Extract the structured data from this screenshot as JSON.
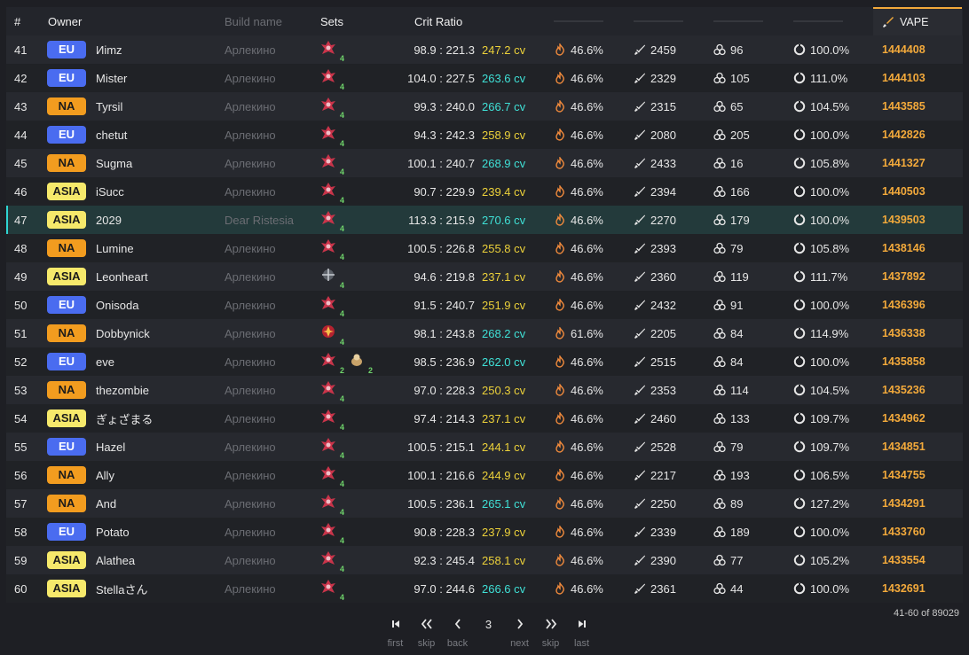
{
  "header": {
    "num": "#",
    "owner": "Owner",
    "build": "Build name",
    "sets": "Sets",
    "crit": "Crit Ratio",
    "sort_label": "VAPE"
  },
  "rows": [
    {
      "rank": "41",
      "region": "EU",
      "owner": "Иimz",
      "build": "Арлекино",
      "sets": [
        {
          "icon": "crimson-witch-set-icon",
          "count": "4"
        }
      ],
      "ratio": "98.9 : 221.3",
      "cv": "247.2 cv",
      "cv_tone": "y",
      "pyro": "46.6%",
      "atk": "2459",
      "em": "96",
      "er": "100.0%",
      "vape": "1444408"
    },
    {
      "rank": "42",
      "region": "EU",
      "owner": "Mister",
      "build": "Арлекино",
      "sets": [
        {
          "icon": "crimson-witch-set-icon",
          "count": "4"
        }
      ],
      "ratio": "104.0 : 227.5",
      "cv": "263.6 cv",
      "cv_tone": "c",
      "pyro": "46.6%",
      "atk": "2329",
      "em": "105",
      "er": "111.0%",
      "vape": "1444103"
    },
    {
      "rank": "43",
      "region": "NA",
      "owner": "Tyrsil",
      "build": "Арлекино",
      "sets": [
        {
          "icon": "crimson-witch-set-icon",
          "count": "4"
        }
      ],
      "ratio": "99.3 : 240.0",
      "cv": "266.7 cv",
      "cv_tone": "c",
      "pyro": "46.6%",
      "atk": "2315",
      "em": "65",
      "er": "104.5%",
      "vape": "1443585"
    },
    {
      "rank": "44",
      "region": "EU",
      "owner": "chetut",
      "build": "Арлекино",
      "sets": [
        {
          "icon": "crimson-witch-set-icon",
          "count": "4"
        }
      ],
      "ratio": "94.3 : 242.3",
      "cv": "258.9 cv",
      "cv_tone": "y",
      "pyro": "46.6%",
      "atk": "2080",
      "em": "205",
      "er": "100.0%",
      "vape": "1442826"
    },
    {
      "rank": "45",
      "region": "NA",
      "owner": "Sugma",
      "build": "Арлекино",
      "sets": [
        {
          "icon": "crimson-witch-set-icon",
          "count": "4"
        }
      ],
      "ratio": "100.1 : 240.7",
      "cv": "268.9 cv",
      "cv_tone": "c",
      "pyro": "46.6%",
      "atk": "2433",
      "em": "16",
      "er": "105.8%",
      "vape": "1441327"
    },
    {
      "rank": "46",
      "region": "ASIA",
      "owner": "iSucc",
      "build": "Арлекино",
      "sets": [
        {
          "icon": "crimson-witch-set-icon",
          "count": "4"
        }
      ],
      "ratio": "90.7 : 229.9",
      "cv": "239.4 cv",
      "cv_tone": "y",
      "pyro": "46.6%",
      "atk": "2394",
      "em": "166",
      "er": "100.0%",
      "vape": "1440503"
    },
    {
      "rank": "47",
      "region": "ASIA",
      "owner": "2029",
      "build": "Dear Ristesia",
      "sets": [
        {
          "icon": "crimson-witch-set-icon",
          "count": "4"
        }
      ],
      "ratio": "113.3 : 215.9",
      "cv": "270.6 cv",
      "cv_tone": "c",
      "pyro": "46.6%",
      "atk": "2270",
      "em": "179",
      "er": "100.0%",
      "vape": "1439503",
      "selected": true
    },
    {
      "rank": "48",
      "region": "NA",
      "owner": "Lumine",
      "build": "Арлекино",
      "sets": [
        {
          "icon": "crimson-witch-set-icon",
          "count": "4"
        }
      ],
      "ratio": "100.5 : 226.8",
      "cv": "255.8 cv",
      "cv_tone": "y",
      "pyro": "46.6%",
      "atk": "2393",
      "em": "79",
      "er": "105.8%",
      "vape": "1438146"
    },
    {
      "rank": "49",
      "region": "ASIA",
      "owner": "Leonheart",
      "build": "Арлекино",
      "sets": [
        {
          "icon": "gladiator-set-icon",
          "count": "4"
        }
      ],
      "ratio": "94.6 : 219.8",
      "cv": "237.1 cv",
      "cv_tone": "y",
      "pyro": "46.6%",
      "atk": "2360",
      "em": "119",
      "er": "111.7%",
      "vape": "1437892"
    },
    {
      "rank": "50",
      "region": "EU",
      "owner": "Onisoda",
      "build": "Арлекино",
      "sets": [
        {
          "icon": "crimson-witch-set-icon",
          "count": "4"
        }
      ],
      "ratio": "91.5 : 240.7",
      "cv": "251.9 cv",
      "cv_tone": "y",
      "pyro": "46.6%",
      "atk": "2432",
      "em": "91",
      "er": "100.0%",
      "vape": "1436396"
    },
    {
      "rank": "51",
      "region": "NA",
      "owner": "Dobbynick",
      "build": "Арлекино",
      "sets": [
        {
          "icon": "fire-set-icon",
          "count": "4"
        }
      ],
      "ratio": "98.1 : 243.8",
      "cv": "268.2 cv",
      "cv_tone": "c",
      "pyro": "61.6%",
      "atk": "2205",
      "em": "84",
      "er": "114.9%",
      "vape": "1436338"
    },
    {
      "rank": "52",
      "region": "EU",
      "owner": "eve",
      "build": "Арлекино",
      "sets": [
        {
          "icon": "crimson-witch-set-icon",
          "count": "2"
        },
        {
          "icon": "gilded-set-icon",
          "count": "2"
        }
      ],
      "ratio": "98.5 : 236.9",
      "cv": "262.0 cv",
      "cv_tone": "c",
      "pyro": "46.6%",
      "atk": "2515",
      "em": "84",
      "er": "100.0%",
      "vape": "1435858"
    },
    {
      "rank": "53",
      "region": "NA",
      "owner": "thezombie",
      "build": "Арлекино",
      "sets": [
        {
          "icon": "crimson-witch-set-icon",
          "count": "4"
        }
      ],
      "ratio": "97.0 : 228.3",
      "cv": "250.3 cv",
      "cv_tone": "y",
      "pyro": "46.6%",
      "atk": "2353",
      "em": "114",
      "er": "104.5%",
      "vape": "1435236"
    },
    {
      "rank": "54",
      "region": "ASIA",
      "owner": "ぎょざまる",
      "build": "Арлекино",
      "sets": [
        {
          "icon": "crimson-witch-set-icon",
          "count": "4"
        }
      ],
      "ratio": "97.4 : 214.3",
      "cv": "237.1 cv",
      "cv_tone": "y",
      "pyro": "46.6%",
      "atk": "2460",
      "em": "133",
      "er": "109.7%",
      "vape": "1434962"
    },
    {
      "rank": "55",
      "region": "EU",
      "owner": "Hazel",
      "build": "Арлекино",
      "sets": [
        {
          "icon": "crimson-witch-set-icon",
          "count": "4"
        }
      ],
      "ratio": "100.5 : 215.1",
      "cv": "244.1 cv",
      "cv_tone": "y",
      "pyro": "46.6%",
      "atk": "2528",
      "em": "79",
      "er": "109.7%",
      "vape": "1434851"
    },
    {
      "rank": "56",
      "region": "NA",
      "owner": "Ally",
      "build": "Арлекино",
      "sets": [
        {
          "icon": "crimson-witch-set-icon",
          "count": "4"
        }
      ],
      "ratio": "100.1 : 216.6",
      "cv": "244.9 cv",
      "cv_tone": "y",
      "pyro": "46.6%",
      "atk": "2217",
      "em": "193",
      "er": "106.5%",
      "vape": "1434755"
    },
    {
      "rank": "57",
      "region": "NA",
      "owner": "And",
      "build": "Арлекино",
      "sets": [
        {
          "icon": "crimson-witch-set-icon",
          "count": "4"
        }
      ],
      "ratio": "100.5 : 236.1",
      "cv": "265.1 cv",
      "cv_tone": "c",
      "pyro": "46.6%",
      "atk": "2250",
      "em": "89",
      "er": "127.2%",
      "vape": "1434291"
    },
    {
      "rank": "58",
      "region": "EU",
      "owner": "Potato",
      "build": "Арлекино",
      "sets": [
        {
          "icon": "crimson-witch-set-icon",
          "count": "4"
        }
      ],
      "ratio": "90.8 : 228.3",
      "cv": "237.9 cv",
      "cv_tone": "y",
      "pyro": "46.6%",
      "atk": "2339",
      "em": "189",
      "er": "100.0%",
      "vape": "1433760"
    },
    {
      "rank": "59",
      "region": "ASIA",
      "owner": "Alathea",
      "build": "Арлекино",
      "sets": [
        {
          "icon": "crimson-witch-set-icon",
          "count": "4"
        }
      ],
      "ratio": "92.3 : 245.4",
      "cv": "258.1 cv",
      "cv_tone": "y",
      "pyro": "46.6%",
      "atk": "2390",
      "em": "77",
      "er": "105.2%",
      "vape": "1433554"
    },
    {
      "rank": "60",
      "region": "ASIA",
      "owner": "Stellaさん",
      "build": "Арлекино",
      "sets": [
        {
          "icon": "crimson-witch-set-icon",
          "count": "4"
        }
      ],
      "ratio": "97.0 : 244.6",
      "cv": "266.6 cv",
      "cv_tone": "c",
      "pyro": "46.6%",
      "atk": "2361",
      "em": "44",
      "er": "100.0%",
      "vape": "1432691"
    }
  ],
  "pagination": {
    "range": "41-60 of 89029",
    "current_page": "3",
    "first": "first",
    "skip_back": "skip",
    "back": "back",
    "next": "next",
    "skip_forward": "skip",
    "last": "last"
  },
  "colors": {
    "accent": "#f2a93b",
    "selected_row": "#233a3b",
    "eu": "#4a6cf0",
    "na": "#f29c1f",
    "asia": "#f6e96b"
  }
}
